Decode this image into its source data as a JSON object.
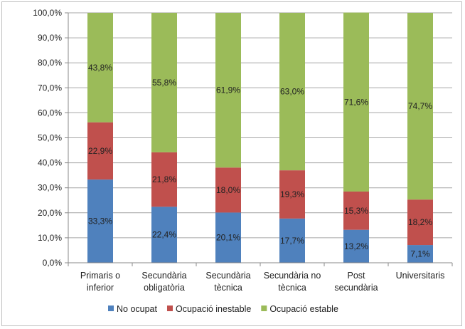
{
  "chart_data": {
    "type": "bar",
    "stacked": true,
    "categories": [
      [
        "Primaris o",
        "inferior"
      ],
      [
        "Secundària",
        "obligatòria"
      ],
      [
        "Secundària",
        "tècnica"
      ],
      [
        "Secundària no",
        "tècnica"
      ],
      [
        "Post",
        "secundària"
      ],
      [
        "Universitaris"
      ]
    ],
    "series": [
      {
        "name": "No ocupat",
        "color": "#4f81bd",
        "values": [
          33.3,
          22.4,
          20.1,
          17.7,
          13.2,
          7.1
        ],
        "labels": [
          "33,3%",
          "22,4%",
          "20,1%",
          "17,7%",
          "13,2%",
          "7,1%"
        ]
      },
      {
        "name": "Ocupació inestable",
        "color": "#c0504d",
        "values": [
          22.9,
          21.8,
          18.0,
          19.3,
          15.3,
          18.2
        ],
        "labels": [
          "22,9%",
          "21,8%",
          "18,0%",
          "19,3%",
          "15,3%",
          "18,2%"
        ]
      },
      {
        "name": "Ocupació estable",
        "color": "#9bbb59",
        "values": [
          43.8,
          55.8,
          61.9,
          63.0,
          71.6,
          74.7
        ],
        "labels": [
          "43,8%",
          "55,8%",
          "61,9%",
          "63,0%",
          "71,6%",
          "74,7%"
        ]
      }
    ],
    "ylim": [
      0,
      100
    ],
    "yticks": [
      0,
      10,
      20,
      30,
      40,
      50,
      60,
      70,
      80,
      90,
      100
    ],
    "ytick_labels": [
      "0,0%",
      "10,0%",
      "20,0%",
      "30,0%",
      "40,0%",
      "50,0%",
      "60,0%",
      "70,0%",
      "80,0%",
      "90,0%",
      "100,0%"
    ],
    "grid": true,
    "legend_position": "bottom"
  }
}
